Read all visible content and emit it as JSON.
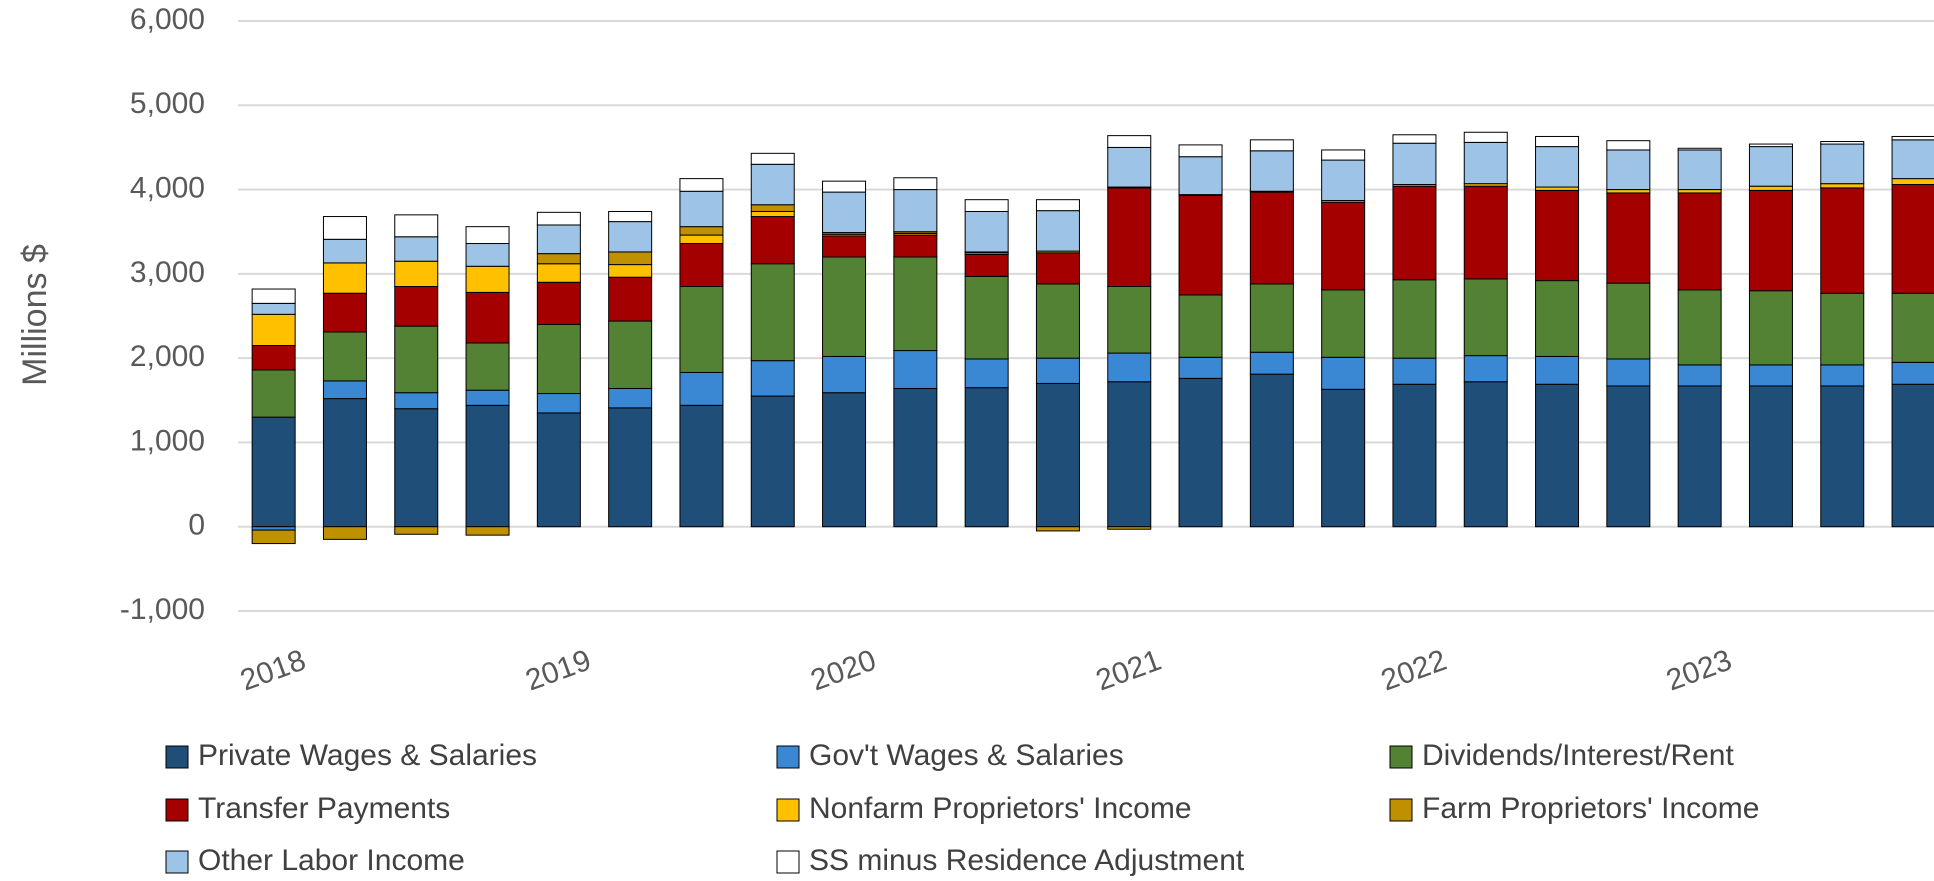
{
  "chart_data": {
    "type": "bar",
    "stacked": true,
    "y_label": "Millions $",
    "categories": [
      "2018",
      null,
      null,
      null,
      "2019",
      null,
      null,
      null,
      "2020",
      null,
      null,
      null,
      "2021",
      null,
      null,
      null,
      "2022",
      null,
      null,
      null,
      "2023",
      null,
      null,
      null
    ],
    "ylim": [
      -1000,
      6000
    ],
    "yticks": [
      {
        "value": -1000,
        "label": "-1,000"
      },
      0,
      {
        "value": 1000,
        "label": "1,000"
      },
      {
        "value": 2000,
        "label": "2,000"
      },
      {
        "value": 3000,
        "label": "3,000"
      },
      {
        "value": 4000,
        "label": "4,000"
      },
      {
        "value": 5000,
        "label": "5,000"
      },
      {
        "value": 6000,
        "label": "6,000"
      }
    ],
    "grid": true,
    "legend": "bottom",
    "series": [
      {
        "name": "Private Wages & Salaries",
        "color": "#1f4e79",
        "values": [
          1300,
          1520,
          1400,
          1440,
          1350,
          1410,
          1440,
          1550,
          1590,
          1640,
          1650,
          1700,
          1720,
          1760,
          1810,
          1630,
          1690,
          1720,
          1690,
          1670,
          1670,
          1670,
          1670,
          1690
        ]
      },
      {
        "name": "Gov't Wages & Salaries",
        "color": "#3a87d4",
        "values": [
          -40,
          210,
          190,
          180,
          230,
          230,
          390,
          420,
          430,
          450,
          340,
          300,
          340,
          250,
          260,
          380,
          310,
          310,
          330,
          320,
          250,
          250,
          250,
          260
        ]
      },
      {
        "name": "Dividends/Interest/Rent",
        "color": "#548235",
        "values": [
          560,
          580,
          790,
          560,
          820,
          800,
          1020,
          1150,
          1180,
          1110,
          980,
          880,
          790,
          740,
          810,
          800,
          930,
          910,
          900,
          900,
          890,
          880,
          850,
          820
        ]
      },
      {
        "name": "Transfer Payments",
        "color": "#a50000",
        "values": [
          290,
          460,
          470,
          600,
          500,
          520,
          510,
          560,
          250,
          260,
          260,
          370,
          1170,
          1180,
          1090,
          1040,
          1110,
          1100,
          1070,
          1070,
          1150,
          1190,
          1250,
          1290
        ]
      },
      {
        "name": "Nonfarm Proprietors' Income",
        "color": "#ffc000",
        "values": [
          370,
          360,
          300,
          310,
          220,
          150,
          100,
          60,
          20,
          20,
          20,
          20,
          10,
          10,
          10,
          20,
          20,
          30,
          40,
          40,
          40,
          50,
          50,
          70
        ]
      },
      {
        "name": "Farm Proprietors' Income",
        "color": "#bf9000",
        "values": [
          -160,
          -150,
          -90,
          -100,
          120,
          150,
          100,
          80,
          20,
          20,
          10,
          -50,
          -30,
          0,
          0,
          0,
          0,
          0,
          0,
          0,
          0,
          0,
          0,
          0
        ]
      },
      {
        "name": "Other Labor Income",
        "color": "#9dc3e6",
        "values": [
          130,
          280,
          290,
          270,
          340,
          360,
          420,
          480,
          480,
          500,
          480,
          480,
          470,
          450,
          480,
          480,
          490,
          490,
          480,
          470,
          470,
          470,
          470,
          460
        ]
      },
      {
        "name": "SS minus Residence Adjustment",
        "color": "#ffffff",
        "values": [
          170,
          270,
          260,
          200,
          150,
          120,
          150,
          130,
          130,
          140,
          140,
          130,
          140,
          140,
          130,
          120,
          100,
          120,
          120,
          110,
          20,
          30,
          30,
          40
        ]
      }
    ]
  }
}
